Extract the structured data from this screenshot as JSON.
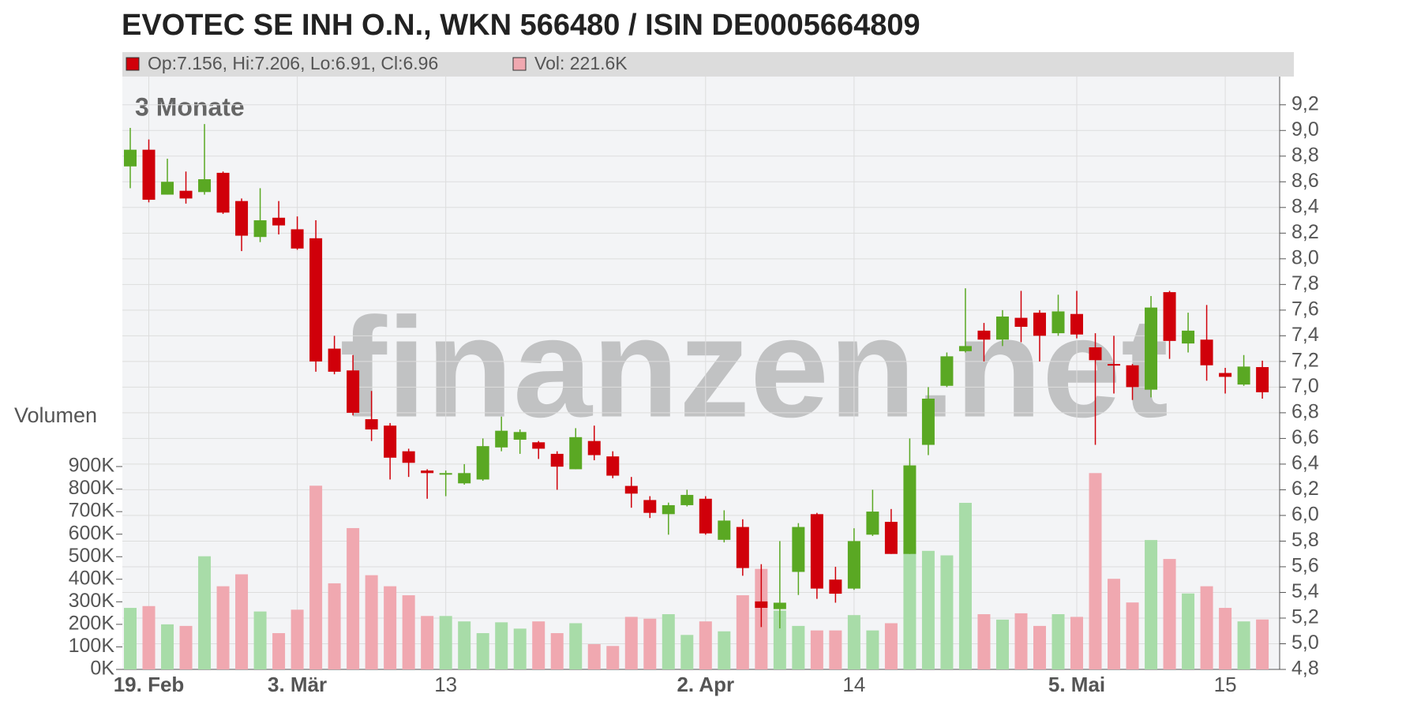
{
  "chart_data": {
    "type": "candlestick",
    "title": "EVOTEC SE INH O.N., WKN 566480 / ISIN DE0005664809",
    "legend": {
      "price": "Op:7.156, Hi:7.206, Lo:6.91, Cl:6.96",
      "volume": "Vol: 221.6K"
    },
    "period_label": "3 Monate",
    "volume_label": "Volumen",
    "watermark": "finanzen.net",
    "categories": [
      null,
      "19. Feb",
      null,
      null,
      null,
      null,
      null,
      null,
      null,
      "3. Mär",
      null,
      null,
      null,
      null,
      null,
      null,
      null,
      "13",
      null,
      null,
      null,
      null,
      null,
      null,
      null,
      null,
      null,
      null,
      null,
      null,
      null,
      "2. Apr",
      null,
      null,
      null,
      null,
      null,
      null,
      null,
      "14",
      null,
      null,
      null,
      null,
      null,
      null,
      null,
      null,
      null,
      null,
      null,
      "5. Mai",
      null,
      null,
      null,
      null,
      null,
      null,
      null,
      "15",
      null,
      null
    ],
    "open": [
      8.72,
      8.85,
      8.5,
      8.53,
      8.52,
      8.67,
      8.45,
      8.17,
      8.32,
      8.23,
      8.16,
      7.3,
      7.13,
      6.75,
      6.7,
      6.5,
      6.35,
      6.32,
      6.25,
      6.28,
      6.53,
      6.59,
      6.57,
      6.48,
      6.36,
      6.58,
      6.46,
      6.23,
      6.12,
      6.01,
      6.08,
      6.13,
      5.81,
      5.91,
      5.33,
      5.27,
      5.56,
      6.01,
      5.5,
      5.43,
      5.85,
      5.95,
      5.7,
      6.55,
      7.01,
      7.28,
      7.44,
      7.37,
      7.54,
      7.58,
      7.42,
      7.57,
      7.31,
      7.18,
      7.17,
      6.98,
      7.74,
      7.34,
      7.37,
      7.11,
      7.02,
      7.156
    ],
    "high": [
      9.02,
      8.93,
      8.78,
      8.68,
      9.05,
      8.68,
      8.47,
      8.55,
      8.45,
      8.33,
      8.3,
      7.4,
      7.25,
      6.97,
      6.72,
      6.52,
      6.36,
      6.35,
      6.4,
      6.6,
      6.77,
      6.67,
      6.58,
      6.5,
      6.68,
      6.7,
      6.5,
      6.3,
      6.15,
      6.1,
      6.2,
      6.15,
      6.04,
      5.97,
      5.62,
      5.8,
      5.94,
      6.02,
      5.6,
      5.9,
      6.2,
      6.05,
      6.6,
      7.0,
      7.27,
      7.77,
      7.5,
      7.6,
      7.75,
      7.6,
      7.72,
      7.75,
      7.42,
      7.4,
      7.18,
      7.71,
      7.75,
      7.58,
      7.64,
      7.15,
      7.25,
      7.206
    ],
    "low": [
      8.55,
      8.44,
      8.5,
      8.43,
      8.5,
      8.35,
      8.06,
      8.13,
      8.19,
      8.07,
      7.12,
      7.1,
      6.78,
      6.58,
      6.28,
      6.3,
      6.13,
      6.15,
      6.24,
      6.27,
      6.5,
      6.48,
      6.44,
      6.2,
      6.36,
      6.43,
      6.29,
      6.06,
      5.98,
      5.85,
      6.07,
      5.85,
      5.79,
      5.53,
      5.13,
      5.12,
      5.38,
      5.35,
      5.32,
      5.42,
      5.84,
      5.7,
      5.7,
      6.47,
      7.0,
      7.27,
      7.2,
      7.32,
      7.35,
      7.2,
      7.4,
      7.38,
      6.55,
      6.95,
      6.9,
      6.92,
      7.22,
      7.27,
      7.05,
      6.95,
      7.01,
      6.91
    ],
    "close": [
      8.85,
      8.46,
      8.6,
      8.47,
      8.62,
      8.36,
      8.18,
      8.3,
      8.26,
      8.08,
      7.2,
      7.12,
      6.8,
      6.67,
      6.45,
      6.41,
      6.33,
      6.33,
      6.33,
      6.54,
      6.66,
      6.65,
      6.52,
      6.38,
      6.61,
      6.47,
      6.31,
      6.17,
      6.02,
      6.08,
      6.16,
      5.86,
      5.96,
      5.59,
      5.28,
      5.32,
      5.91,
      5.43,
      5.39,
      5.8,
      6.03,
      5.7,
      6.39,
      6.91,
      7.24,
      7.32,
      7.37,
      7.55,
      7.47,
      7.4,
      7.59,
      7.41,
      7.21,
      7.17,
      7.0,
      7.62,
      7.36,
      7.44,
      7.17,
      7.08,
      7.16,
      6.96
    ],
    "volume": [
      273000,
      281000,
      200000,
      193000,
      502000,
      369000,
      422000,
      257000,
      161000,
      265000,
      815000,
      382000,
      627000,
      418000,
      369000,
      329000,
      237000,
      237000,
      213000,
      161000,
      209000,
      181000,
      213000,
      161000,
      205000,
      112000,
      104000,
      233000,
      225000,
      245000,
      153000,
      213000,
      169000,
      329000,
      446000,
      261000,
      193000,
      173000,
      173000,
      241000,
      173000,
      205000,
      546000,
      526000,
      506000,
      739000,
      245000,
      221000,
      249000,
      193000,
      245000,
      233000,
      871000,
      402000,
      297000,
      574000,
      490000,
      337000,
      369000,
      273000,
      213000,
      221600
    ],
    "ylim": [
      4.8,
      9.42
    ],
    "yticks": [
      {
        "value": 4.8,
        "label": "4,8"
      },
      {
        "value": 5.0,
        "label": "5,0"
      },
      {
        "value": 5.2,
        "label": "5,2"
      },
      {
        "value": 5.4,
        "label": "5,4"
      },
      {
        "value": 5.6,
        "label": "5,6"
      },
      {
        "value": 5.8,
        "label": "5,8"
      },
      {
        "value": 6.0,
        "label": "6,0"
      },
      {
        "value": 6.2,
        "label": "6,2"
      },
      {
        "value": 6.4,
        "label": "6,4"
      },
      {
        "value": 6.6,
        "label": "6,6"
      },
      {
        "value": 6.8,
        "label": "6,8"
      },
      {
        "value": 7.0,
        "label": "7,0"
      },
      {
        "value": 7.2,
        "label": "7,2"
      },
      {
        "value": 7.4,
        "label": "7,4"
      },
      {
        "value": 7.6,
        "label": "7,6"
      },
      {
        "value": 7.8,
        "label": "7,8"
      },
      {
        "value": 8.0,
        "label": "8,0"
      },
      {
        "value": 8.2,
        "label": "8,2"
      },
      {
        "value": 8.4,
        "label": "8,4"
      },
      {
        "value": 8.6,
        "label": "8,6"
      },
      {
        "value": 8.8,
        "label": "8,8"
      },
      {
        "value": 9.0,
        "label": "9,0"
      },
      {
        "value": 9.2,
        "label": "9,2"
      }
    ],
    "y2lim": [
      0,
      2630000
    ],
    "y2ticks": [
      {
        "value": 0,
        "label": "0K"
      },
      {
        "value": 100000,
        "label": "100K"
      },
      {
        "value": 200000,
        "label": "200K"
      },
      {
        "value": 300000,
        "label": "300K"
      },
      {
        "value": 400000,
        "label": "400K"
      },
      {
        "value": 500000,
        "label": "500K"
      },
      {
        "value": 600000,
        "label": "600K"
      },
      {
        "value": 700000,
        "label": "700K"
      },
      {
        "value": 800000,
        "label": "800K"
      },
      {
        "value": 900000,
        "label": "900K"
      }
    ],
    "grid": true,
    "up_color": "#5aa823",
    "down_color": "#d0000a",
    "volume_up_color": "#a8dca8",
    "volume_down_color": "#f0a8b0"
  }
}
